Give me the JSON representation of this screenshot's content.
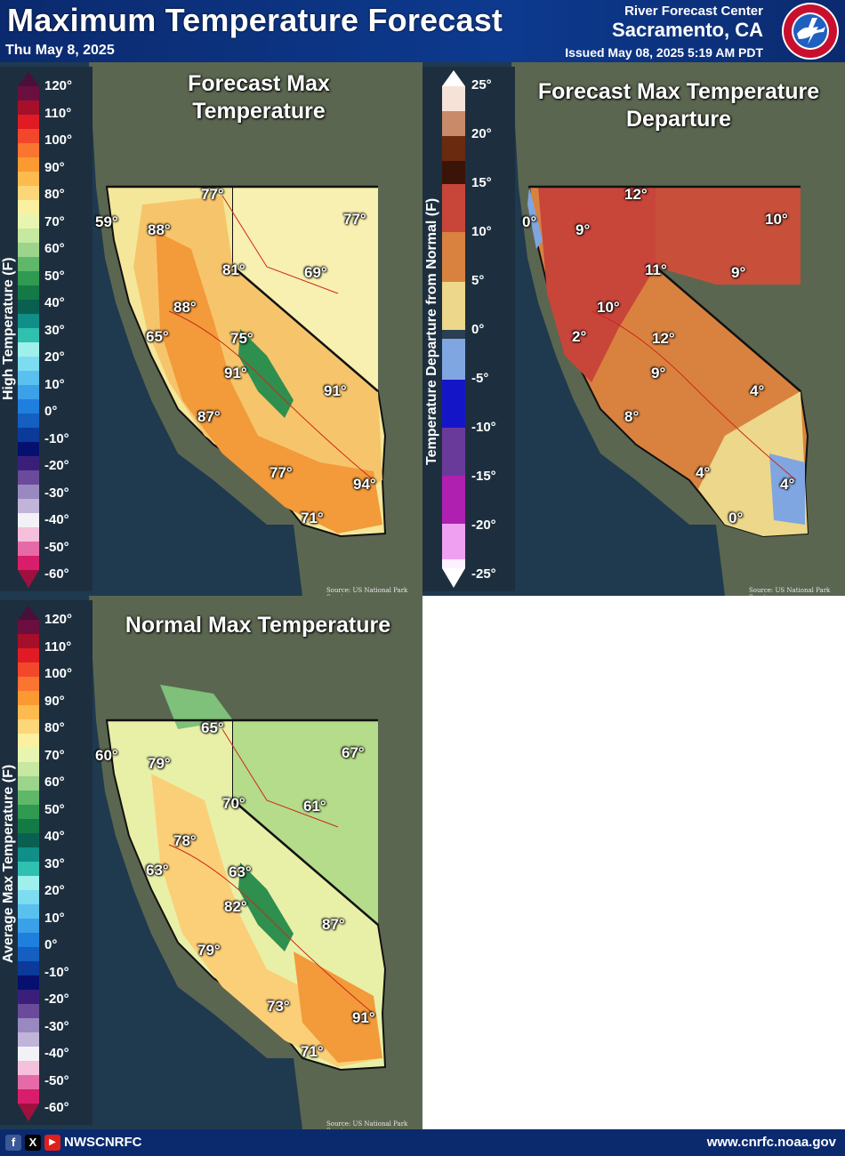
{
  "header": {
    "title": "Maximum Temperature Forecast",
    "date": "Thu May 8, 2025",
    "office_line1": "River Forecast Center",
    "office_line2": "Sacramento, CA",
    "issued": "Issued May 08, 2025 5:19 AM PDT",
    "logo_text": "NATIONAL WEATHER SERVICE"
  },
  "legend_high": {
    "label": "High Temperature (F)",
    "ticks": [
      "120°",
      "110°",
      "100°",
      "90°",
      "80°",
      "70°",
      "60°",
      "50°",
      "40°",
      "30°",
      "20°",
      "10°",
      "0°",
      "-10°",
      "-20°",
      "-30°",
      "-40°",
      "-50°",
      "-60°"
    ]
  },
  "legend_departure": {
    "label": "Temperature Departure from Normal (F)",
    "ticks": [
      "25°",
      "20°",
      "15°",
      "10°",
      "5°",
      "0°",
      "-5°",
      "-10°",
      "-15°",
      "-20°",
      "-25°"
    ]
  },
  "legend_normal": {
    "label": "Average Max Temperature (F)",
    "ticks": [
      "120°",
      "110°",
      "100°",
      "90°",
      "80°",
      "70°",
      "60°",
      "50°",
      "40°",
      "30°",
      "20°",
      "10°",
      "0°",
      "-10°",
      "-20°",
      "-30°",
      "-40°",
      "-50°",
      "-60°"
    ]
  },
  "panel_forecast": {
    "title": "Forecast Max Temperature",
    "source": "Source: US National Park Service",
    "values": [
      "59°",
      "77°",
      "88°",
      "77°",
      "81°",
      "69°",
      "88°",
      "65°",
      "75°",
      "91°",
      "91°",
      "87°",
      "77°",
      "94°",
      "71°"
    ]
  },
  "panel_departure": {
    "title": "Forecast Max Temperature Departure",
    "source": "Source: US National Park Service",
    "values": [
      "0°",
      "12°",
      "9°",
      "10°",
      "11°",
      "9°",
      "10°",
      "2°",
      "12°",
      "9°",
      "4°",
      "8°",
      "4°",
      "4°",
      "0°"
    ]
  },
  "panel_normal": {
    "title": "Normal Max Temperature",
    "source": "Source: US National Park Service",
    "values": [
      "60°",
      "65°",
      "79°",
      "67°",
      "70°",
      "61°",
      "78°",
      "63°",
      "63°",
      "82°",
      "87°",
      "79°",
      "73°",
      "91°",
      "71°"
    ]
  },
  "footer": {
    "handle": "NWSCNRFC",
    "url": "www.cnrfc.noaa.gov",
    "icons": [
      "facebook-icon",
      "x-icon",
      "youtube-icon"
    ]
  },
  "colors": {
    "header_bg": "#0b2a6e",
    "ocean": "#1f3a4f",
    "land_background": "#5b6650"
  }
}
